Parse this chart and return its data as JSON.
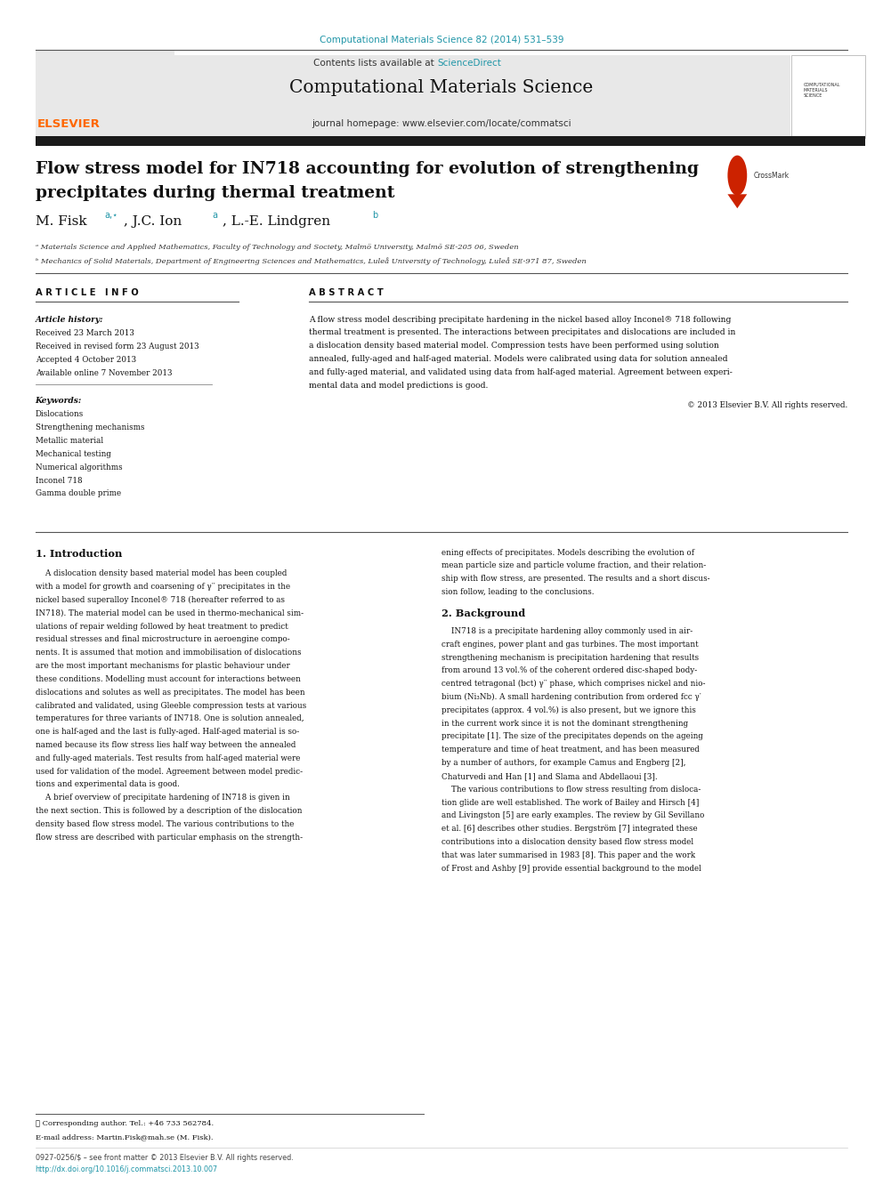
{
  "page_width": 9.92,
  "page_height": 13.23,
  "bg_color": "#ffffff",
  "journal_ref_color": "#2196a8",
  "journal_ref": "Computational Materials Science 82 (2014) 531–539",
  "header_bg": "#e8e8e8",
  "header_text": "Computational Materials Science",
  "header_sub": "Contents lists available at",
  "header_scidir": "ScienceDirect",
  "header_journal": "journal homepage: www.elsevier.com/locate/commatsci",
  "elsevier_color": "#ff6600",
  "title_line1": "Flow stress model for IN718 accounting for evolution of strengthening",
  "title_line2": "precipitates during thermal treatment",
  "affil_a": "ᵃ Materials Science and Applied Mathematics, Faculty of Technology and Society, Malmö University, Malmö SE-205 06, Sweden",
  "affil_b": "ᵇ Mechanics of Solid Materials, Department of Engineering Sciences and Mathematics, Luleå University of Technology, Luleå SE-971 87, Sweden",
  "section_article_info": "A R T I C L E   I N F O",
  "section_abstract": "A B S T R A C T",
  "article_history_label": "Article history:",
  "received": "Received 23 March 2013",
  "revised": "Received in revised form 23 August 2013",
  "accepted": "Accepted 4 October 2013",
  "available": "Available online 7 November 2013",
  "keywords_label": "Keywords:",
  "keywords": [
    "Dislocations",
    "Strengthening mechanisms",
    "Metallic material",
    "Mechanical testing",
    "Numerical algorithms",
    "Inconel 718",
    "Gamma double prime"
  ],
  "abstract_lines": [
    "A flow stress model describing precipitate hardening in the nickel based alloy Inconel® 718 following",
    "thermal treatment is presented. The interactions between precipitates and dislocations are included in",
    "a dislocation density based material model. Compression tests have been performed using solution",
    "annealed, fully-aged and half-aged material. Models were calibrated using data for solution annealed",
    "and fully-aged material, and validated using data from half-aged material. Agreement between experi-",
    "mental data and model predictions is good."
  ],
  "copyright": "© 2013 Elsevier B.V. All rights reserved.",
  "intro_heading": "1. Introduction",
  "intro_left_lines": [
    "    A dislocation density based material model has been coupled",
    "with a model for growth and coarsening of γ′′ precipitates in the",
    "nickel based superalloy Inconel® 718 (hereafter referred to as",
    "IN718). The material model can be used in thermo-mechanical sim-",
    "ulations of repair welding followed by heat treatment to predict",
    "residual stresses and final microstructure in aeroengine compo-",
    "nents. It is assumed that motion and immobilisation of dislocations",
    "are the most important mechanisms for plastic behaviour under",
    "these conditions. Modelling must account for interactions between",
    "dislocations and solutes as well as precipitates. The model has been",
    "calibrated and validated, using Gleeble compression tests at various",
    "temperatures for three variants of IN718. One is solution annealed,",
    "one is half-aged and the last is fully-aged. Half-aged material is so-",
    "named because its flow stress lies half way between the annealed",
    "and fully-aged materials. Test results from half-aged material were",
    "used for validation of the model. Agreement between model predic-",
    "tions and experimental data is good.",
    "    A brief overview of precipitate hardening of IN718 is given in",
    "the next section. This is followed by a description of the dislocation",
    "density based flow stress model. The various contributions to the",
    "flow stress are described with particular emphasis on the strength-"
  ],
  "intro_right_lines": [
    "ening effects of precipitates. Models describing the evolution of",
    "mean particle size and particle volume fraction, and their relation-",
    "ship with flow stress, are presented. The results and a short discus-",
    "sion follow, leading to the conclusions."
  ],
  "background_heading": "2. Background",
  "background_right_lines": [
    "    IN718 is a precipitate hardening alloy commonly used in air-",
    "craft engines, power plant and gas turbines. The most important",
    "strengthening mechanism is precipitation hardening that results",
    "from around 13 vol.% of the coherent ordered disc-shaped body-",
    "centred tetragonal (bct) γ′′ phase, which comprises nickel and nio-",
    "bium (Ni₃Nb). A small hardening contribution from ordered fcc γ′",
    "precipitates (approx. 4 vol.%) is also present, but we ignore this",
    "in the current work since it is not the dominant strengthening",
    "precipitate [1]. The size of the precipitates depends on the ageing",
    "temperature and time of heat treatment, and has been measured",
    "by a number of authors, for example Camus and Engberg [2],",
    "Chaturvedi and Han [1] and Slama and Abdellaoui [3].",
    "    The various contributions to flow stress resulting from disloca-",
    "tion glide are well established. The work of Bailey and Hirsch [4]",
    "and Livingston [5] are early examples. The review by Gil Sevillano",
    "et al. [6] describes other studies. Bergström [7] integrated these",
    "contributions into a dislocation density based flow stress model",
    "that was later summarised in 1983 [8]. This paper and the work",
    "of Frost and Ashby [9] provide essential background to the model"
  ],
  "footnote_star": "⋆ Corresponding author. Tel.: +46 733 562784.",
  "footnote_email": "E-mail address: Martin.Fisk@mah.se (M. Fisk).",
  "footer_issn": "0927-0256/$ – see front matter © 2013 Elsevier B.V. All rights reserved.",
  "footer_doi": "http://dx.doi.org/10.1016/j.commatsci.2013.10.007",
  "black_bar_color": "#1a1a1a",
  "link_color": "#2196a8"
}
